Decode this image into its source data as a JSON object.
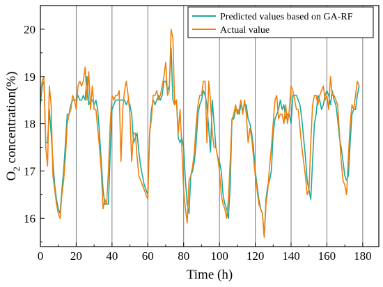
{
  "chart_data": {
    "type": "line",
    "xlabel": "Time (h)",
    "ylabel_main": "O",
    "ylabel_sub": "2",
    "ylabel_rest": " concentration(%)",
    "xlim": [
      0,
      189
    ],
    "ylim": [
      15.4,
      20.5
    ],
    "xticks": [
      0,
      20,
      40,
      60,
      80,
      100,
      120,
      140,
      160,
      180
    ],
    "yticks": [
      16,
      17,
      18,
      19,
      20
    ],
    "vertical_gridlines": [
      20,
      40,
      60,
      80,
      100,
      120,
      140,
      160,
      180
    ],
    "legend_position": "top-right",
    "series": [
      {
        "name": "Predicted values based on GA-RF",
        "color": "#1aaa9e",
        "values": [
          18.4,
          18.8,
          18.9,
          17.6,
          17.6,
          18.3,
          17.8,
          17.2,
          16.7,
          16.4,
          16.2,
          16.1,
          16.6,
          17.0,
          17.6,
          18.2,
          18.2,
          18.4,
          18.5,
          18.5,
          18.5,
          18.6,
          18.5,
          18.5,
          18.6,
          18.5,
          19.0,
          18.4,
          18.5,
          18.5,
          18.4,
          18.5,
          18.3,
          17.8,
          17.2,
          16.6,
          16.3,
          16.3,
          16.3,
          17.4,
          18.3,
          18.4,
          18.5,
          18.5,
          18.5,
          18.5,
          18.5,
          18.5,
          18.4,
          18.5,
          18.4,
          18.2,
          17.6,
          17.7,
          17.8,
          17.4,
          17.1,
          16.9,
          16.7,
          16.6,
          16.5,
          17.8,
          18.3,
          18.5,
          18.4,
          18.5,
          18.6,
          18.5,
          18.6,
          18.9,
          18.9,
          18.7,
          18.8,
          19.6,
          18.5,
          18.4,
          18.5,
          17.7,
          17.6,
          17.7,
          17.5,
          16.8,
          16.3,
          16.1,
          16.9,
          17.0,
          17.2,
          17.6,
          18.2,
          18.4,
          18.5,
          18.7,
          18.6,
          18.4,
          17.9,
          17.4,
          18.5,
          18.0,
          17.5,
          17.3,
          17.2,
          17.0,
          16.5,
          16.3,
          16.2,
          16.0,
          16.7,
          18.1,
          18.1,
          18.3,
          18.3,
          18.2,
          18.4,
          18.3,
          18.4,
          18.4,
          18.1,
          18.0,
          17.8,
          17.5,
          17.0,
          16.7,
          16.4,
          16.2,
          16.1,
          15.6,
          16.4,
          16.7,
          16.8,
          17.0,
          17.8,
          18.1,
          18.2,
          18.3,
          18.5,
          18.3,
          18.4,
          18.1,
          18.2,
          18.2,
          18.0,
          18.6,
          18.6,
          18.6,
          18.5,
          18.4,
          18.1,
          17.7,
          17.3,
          16.8,
          16.6,
          16.4,
          17.2,
          18.0,
          18.2,
          18.6,
          18.5,
          18.3,
          18.4,
          18.6,
          18.7,
          18.6,
          18.4,
          18.7,
          18.5,
          18.4,
          18.1,
          17.7,
          17.5,
          17.2,
          16.9,
          16.8,
          16.9,
          17.6,
          18.2,
          18.3,
          18.3,
          18.6,
          18.8
        ],
        "x_step": 1
      },
      {
        "name": "Actual value",
        "color": "#f07f0a",
        "values": [
          18.6,
          18.9,
          19.0,
          17.5,
          17.1,
          18.8,
          18.4,
          16.9,
          16.6,
          16.3,
          16.1,
          16.0,
          16.5,
          16.8,
          17.3,
          18.0,
          18.2,
          18.3,
          18.6,
          18.5,
          18.3,
          18.8,
          18.9,
          18.8,
          18.9,
          19.2,
          18.5,
          19.1,
          18.3,
          18.8,
          18.3,
          18.3,
          17.9,
          17.5,
          17.0,
          16.2,
          16.4,
          16.3,
          17.0,
          18.0,
          18.6,
          18.5,
          18.6,
          18.6,
          18.7,
          17.2,
          18.3,
          18.7,
          18.9,
          18.6,
          18.2,
          17.2,
          17.8,
          17.8,
          17.3,
          16.9,
          16.8,
          16.7,
          16.6,
          16.5,
          16.4,
          17.8,
          18.1,
          18.6,
          18.6,
          18.7,
          18.5,
          18.6,
          18.8,
          19.0,
          19.3,
          18.6,
          18.7,
          20.0,
          19.8,
          18.4,
          18.5,
          17.8,
          18.3,
          17.5,
          16.6,
          16.2,
          15.9,
          16.8,
          16.9,
          17.1,
          17.4,
          18.0,
          18.4,
          18.6,
          18.6,
          18.9,
          18.9,
          17.6,
          18.9,
          18.5,
          17.8,
          17.5,
          17.5,
          17.3,
          17.0,
          16.5,
          16.3,
          16.2,
          16.0,
          16.4,
          17.2,
          18.1,
          18.2,
          18.4,
          18.2,
          18.3,
          18.5,
          18.2,
          18.5,
          18.2,
          17.6,
          17.9,
          17.7,
          17.3,
          16.9,
          16.6,
          16.3,
          16.2,
          16.1,
          15.6,
          16.3,
          16.6,
          17.1,
          17.5,
          18.0,
          18.5,
          18.6,
          18.1,
          18.2,
          18.2,
          18.0,
          18.4,
          18.0,
          18.3,
          18.8,
          18.7,
          18.5,
          18.3,
          18.3,
          17.9,
          17.5,
          17.2,
          16.9,
          16.5,
          16.6,
          17.6,
          18.4,
          18.6,
          18.6,
          18.4,
          18.6,
          18.7,
          18.8,
          18.5,
          18.6,
          18.3,
          19.0,
          18.6,
          18.6,
          18.5,
          18.4,
          17.8,
          17.2,
          16.8,
          16.7,
          16.5,
          17.3,
          18.0,
          18.4,
          18.3,
          18.6,
          18.9,
          18.8
        ],
        "x_step": 1
      }
    ]
  }
}
